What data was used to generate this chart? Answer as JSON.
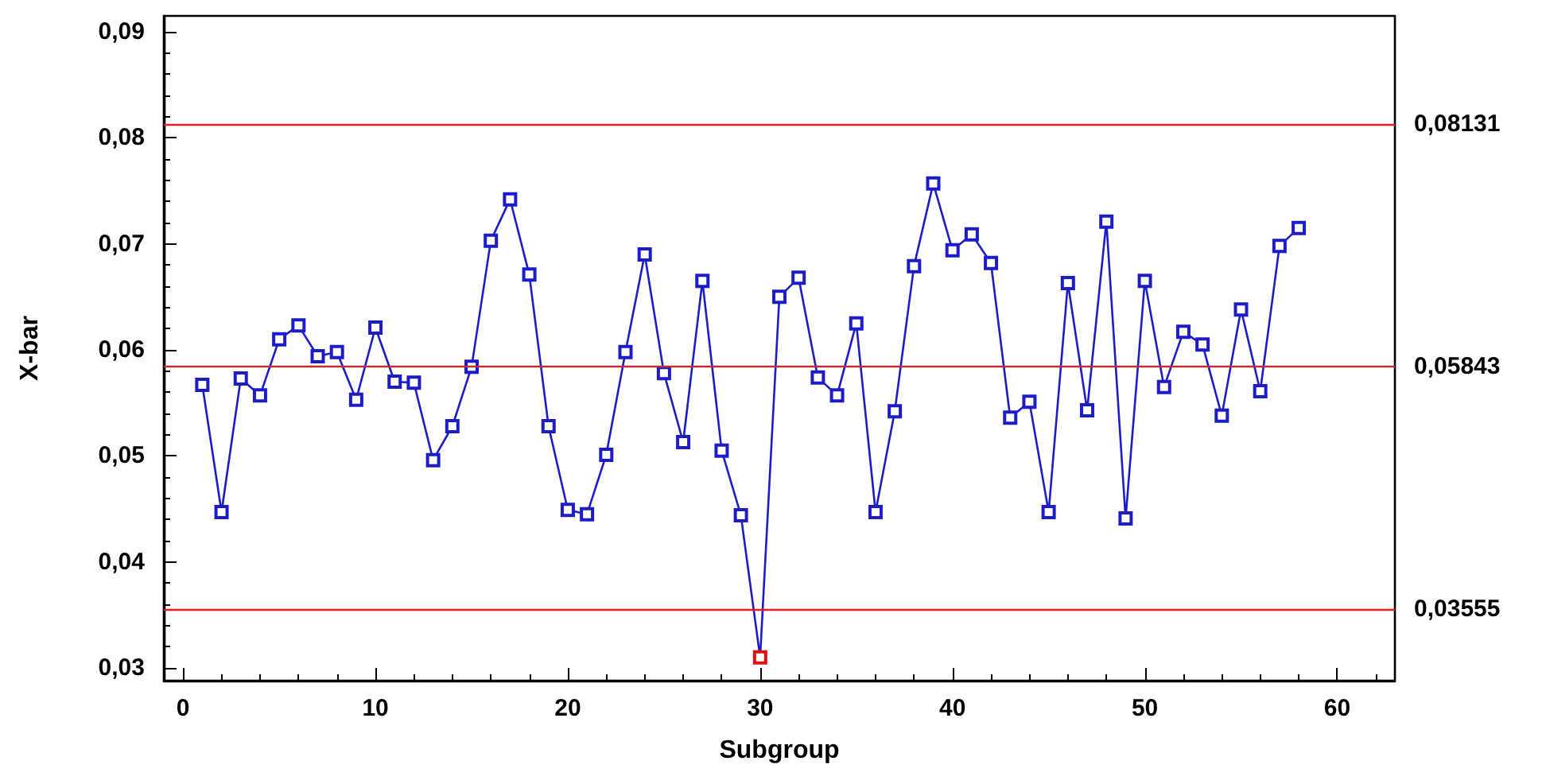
{
  "chart_data": {
    "type": "line",
    "xlabel": "Subgroup",
    "ylabel": "X-bar",
    "x": [
      1,
      2,
      3,
      4,
      5,
      6,
      7,
      8,
      9,
      10,
      11,
      12,
      13,
      14,
      15,
      16,
      17,
      18,
      19,
      20,
      21,
      22,
      23,
      24,
      25,
      26,
      27,
      28,
      29,
      30,
      31,
      32,
      33,
      34,
      35,
      36,
      37,
      38,
      39,
      40,
      41,
      42,
      43,
      44,
      45,
      46,
      47,
      48,
      49,
      50,
      51,
      52,
      53,
      54,
      55,
      56,
      57,
      58
    ],
    "series": [
      {
        "color": "#1c1cc8",
        "colors": [
          "#1c1cc8",
          "#1c1cc8",
          "#1c1cc8",
          "#1c1cc8",
          "#1c1cc8",
          "#1c1cc8",
          "#1c1cc8",
          "#1c1cc8",
          "#1c1cc8",
          "#1c1cc8",
          "#1c1cc8",
          "#1c1cc8",
          "#1c1cc8",
          "#1c1cc8",
          "#1c1cc8",
          "#1c1cc8",
          "#1c1cc8",
          "#1c1cc8",
          "#1c1cc8",
          "#1c1cc8",
          "#1c1cc8",
          "#1c1cc8",
          "#1c1cc8",
          "#1c1cc8",
          "#1c1cc8",
          "#1c1cc8",
          "#1c1cc8",
          "#1c1cc8",
          "#1c1cc8",
          "#e01010",
          "#1c1cc8",
          "#1c1cc8",
          "#1c1cc8",
          "#1c1cc8",
          "#1c1cc8",
          "#1c1cc8",
          "#1c1cc8",
          "#1c1cc8",
          "#1c1cc8",
          "#1c1cc8",
          "#1c1cc8",
          "#1c1cc8",
          "#1c1cc8",
          "#1c1cc8",
          "#1c1cc8",
          "#1c1cc8",
          "#1c1cc8",
          "#1c1cc8",
          "#1c1cc8",
          "#1c1cc8",
          "#1c1cc8",
          "#1c1cc8",
          "#1c1cc8",
          "#1c1cc8",
          "#1c1cc8",
          "#1c1cc8",
          "#1c1cc8",
          "#1c1cc8"
        ],
        "values": [
          0.0567,
          0.0447,
          0.0573,
          0.0557,
          0.061,
          0.0623,
          0.0594,
          0.0598,
          0.0553,
          0.0621,
          0.057,
          0.0569,
          0.0496,
          0.0528,
          0.0584,
          0.0703,
          0.0742,
          0.0671,
          0.0528,
          0.0449,
          0.0445,
          0.0501,
          0.0598,
          0.069,
          0.0578,
          0.0513,
          0.0665,
          0.0505,
          0.0444,
          0.031,
          0.065,
          0.0668,
          0.0574,
          0.0557,
          0.0625,
          0.0447,
          0.0542,
          0.0679,
          0.0757,
          0.0694,
          0.0709,
          0.0682,
          0.0536,
          0.0551,
          0.0447,
          0.0663,
          0.0543,
          0.0721,
          0.0441,
          0.0665,
          0.0565,
          0.0617,
          0.0605,
          0.0538,
          0.0638,
          0.0561,
          0.0698,
          0.0715
        ]
      }
    ],
    "xlim": [
      -1,
      63
    ],
    "xticks": [
      0,
      10,
      20,
      30,
      40,
      50,
      60
    ],
    "ylim": [
      0.0288,
      0.0915
    ],
    "yticks": [
      {
        "value": 0.03,
        "label": "0,03"
      },
      {
        "value": 0.04,
        "label": "0,04"
      },
      {
        "value": 0.05,
        "label": "0,05"
      },
      {
        "value": 0.06,
        "label": "0,06"
      },
      {
        "value": 0.07,
        "label": "0,07"
      },
      {
        "value": 0.08,
        "label": "0,08"
      },
      {
        "value": 0.09,
        "label": "0,09"
      }
    ],
    "ref_lines": [
      {
        "axis": "y",
        "value": 0.08131,
        "label": "0,08131",
        "color": "#e02020"
      },
      {
        "axis": "y",
        "value": 0.05843,
        "label": "0,05843",
        "color": "#b83030"
      },
      {
        "axis": "y",
        "value": 0.03555,
        "label": "0,03555",
        "color": "#e02020"
      }
    ],
    "marker": "square",
    "line_style": "solid",
    "grid": false
  }
}
